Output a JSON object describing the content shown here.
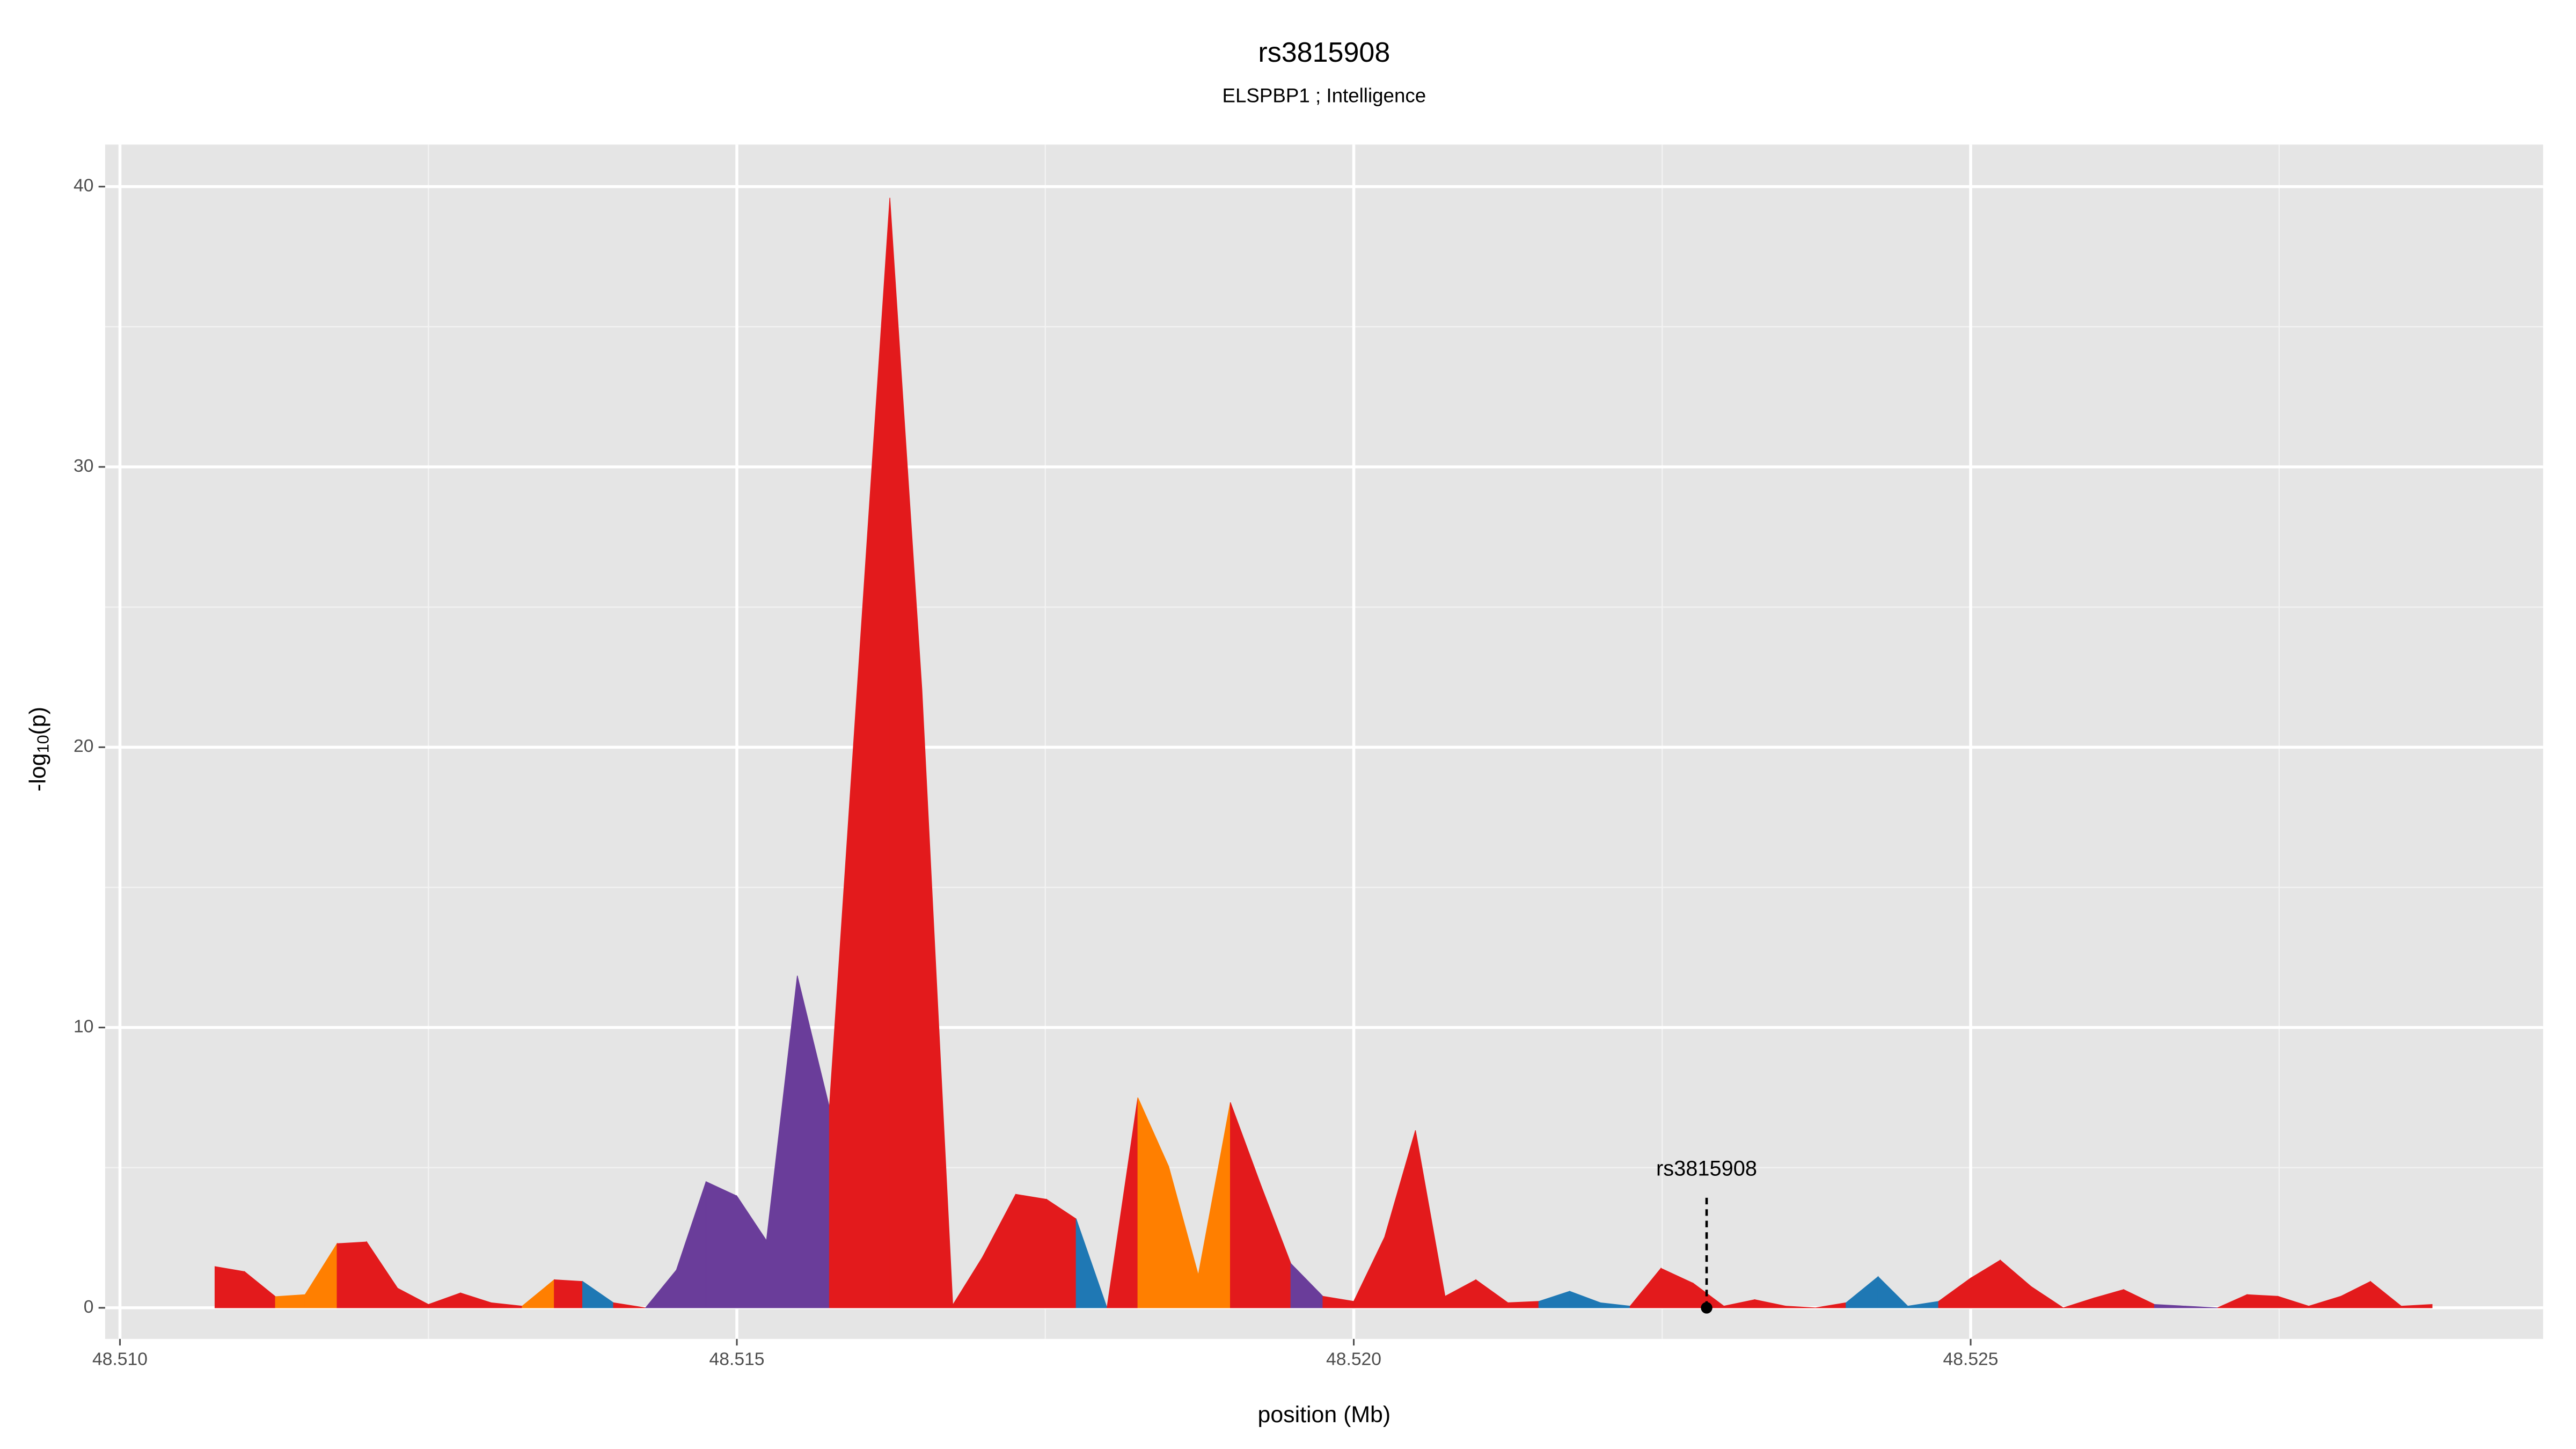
{
  "chart_data": {
    "type": "area",
    "title": "rs3815908",
    "subtitle": "ELSPBP1 ; Intelligence",
    "xlabel": "position (Mb)",
    "ylabel": [
      "-log",
      "10",
      "(p)"
    ],
    "x": [
      48.51077,
      48.51101,
      48.51126,
      48.5115,
      48.51176,
      48.512,
      48.51225,
      48.5125,
      48.51276,
      48.51301,
      48.51326,
      48.51352,
      48.51375,
      48.514,
      48.51426,
      48.51451,
      48.51475,
      48.515,
      48.51524,
      48.51549,
      48.51575,
      48.51624,
      48.5165,
      48.51675,
      48.51699,
      48.51726,
      48.51751,
      48.51775,
      48.518,
      48.51825,
      48.5185,
      48.51874,
      48.519,
      48.51925,
      48.51949,
      48.51975,
      48.52,
      48.52025,
      48.5205,
      48.52074,
      48.52099,
      48.52125,
      48.5215,
      48.52175,
      48.522,
      48.52224,
      48.52249,
      48.52275,
      48.523,
      48.52325,
      48.5235,
      48.52374,
      48.52399,
      48.52425,
      48.52449,
      48.52474,
      48.525,
      48.52524,
      48.52549,
      48.52575,
      48.526,
      48.52624,
      48.52649,
      48.52674,
      48.527,
      48.52724,
      48.52749,
      48.52774,
      48.528,
      48.52824,
      48.52849,
      48.52874
    ],
    "values": [
      1.47,
      1.29,
      0.4,
      0.47,
      2.29,
      2.35,
      0.7,
      0.12,
      0.53,
      0.18,
      0.06,
      1.0,
      0.94,
      0.18,
      0.0,
      1.35,
      4.5,
      3.99,
      2.4,
      11.85,
      7.16,
      39.6,
      22.05,
      0.1,
      1.8,
      4.05,
      3.87,
      3.17,
      0.0,
      7.5,
      5.04,
      1.17,
      7.33,
      4.34,
      1.58,
      0.41,
      0.23,
      2.52,
      6.33,
      0.41,
      1.0,
      0.18,
      0.23,
      0.59,
      0.18,
      0.06,
      1.41,
      0.88,
      0.06,
      0.29,
      0.06,
      0.0,
      0.18,
      1.11,
      0.06,
      0.23,
      1.06,
      1.7,
      0.76,
      0.0,
      0.35,
      0.65,
      0.12,
      0.06,
      0.0,
      0.47,
      0.41,
      0.06,
      0.41,
      0.94,
      0.06,
      0.12
    ],
    "point_colors": [
      "#e31a1c",
      "#e31a1c",
      "#ff7f00",
      "#ff7f00",
      "#e31a1c",
      "#e31a1c",
      "#e31a1c",
      "#e31a1c",
      "#e31a1c",
      "#e31a1c",
      "#ff7f00",
      "#e31a1c",
      "#1f78b4",
      "#e31a1c",
      "#6a3d9a",
      "#6a3d9a",
      "#6a3d9a",
      "#6a3d9a",
      "#6a3d9a",
      "#6a3d9a",
      "#e31a1c",
      "#e31a1c",
      "#e31a1c",
      "#e31a1c",
      "#e31a1c",
      "#e31a1c",
      "#e31a1c",
      "#1f78b4",
      "#e31a1c",
      "#ff7f00",
      "#ff7f00",
      "#ff7f00",
      "#e31a1c",
      "#e31a1c",
      "#6a3d9a",
      "#e31a1c",
      "#e31a1c",
      "#e31a1c",
      "#e31a1c",
      "#e31a1c",
      "#e31a1c",
      "#e31a1c",
      "#1f78b4",
      "#1f78b4",
      "#1f78b4",
      "#e31a1c",
      "#e31a1c",
      "#e31a1c",
      "#e31a1c",
      "#e31a1c",
      "#e31a1c",
      "#e31a1c",
      "#1f78b4",
      "#1f78b4",
      "#1f78b4",
      "#e31a1c",
      "#e31a1c",
      "#e31a1c",
      "#e31a1c",
      "#e31a1c",
      "#e31a1c",
      "#e31a1c",
      "#6a3d9a",
      "#6a3d9a",
      "#e31a1c",
      "#e31a1c",
      "#e31a1c",
      "#e31a1c",
      "#e31a1c",
      "#e31a1c",
      "#e31a1c",
      "#e31a1c"
    ],
    "annotation": {
      "text": "rs3815908",
      "x": 48.52286,
      "y": 0
    },
    "xlim": [
      48.50988,
      48.52964
    ],
    "ylim": [
      -1.11,
      41.5
    ],
    "xticks": [
      {
        "value": 48.51,
        "label": "48.510"
      },
      {
        "value": 48.515,
        "label": "48.515"
      },
      {
        "value": 48.52,
        "label": "48.520"
      },
      {
        "value": 48.525,
        "label": "48.525"
      }
    ],
    "yticks": [
      0,
      10,
      20,
      30,
      40
    ],
    "minor_xticks": [
      48.5125,
      48.5175,
      48.5225,
      48.5275
    ],
    "minor_yticks": [
      5,
      15,
      25,
      35
    ],
    "grid": true
  }
}
